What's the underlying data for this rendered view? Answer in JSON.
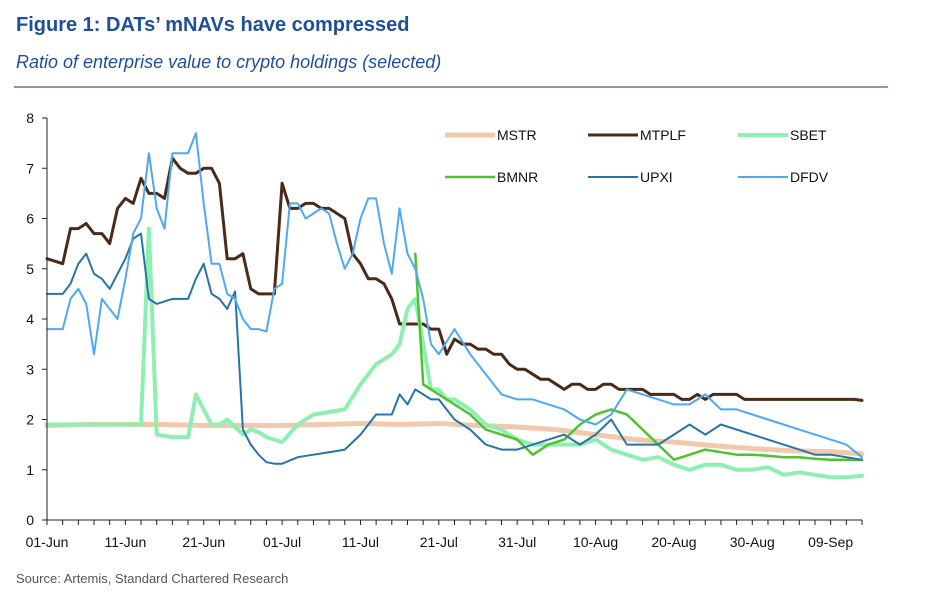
{
  "title": "Figure 1: DATs’ mNAVs have compressed",
  "subtitle": "Ratio of enterprise value to crypto holdings (selected)",
  "source": "Source: Artemis, Standard Chartered Research",
  "chart_data": {
    "type": "line",
    "title": "Figure 1: DATs’ mNAVs have compressed",
    "subtitle": "Ratio of enterprise value to crypto holdings (selected)",
    "xlabel": "",
    "ylabel": "",
    "ylim": [
      0,
      8
    ],
    "yticks": [
      0,
      1,
      2,
      3,
      4,
      5,
      6,
      7,
      8
    ],
    "xticks": [
      "01-Jun",
      "11-Jun",
      "21-Jun",
      "01-Jul",
      "11-Jul",
      "21-Jul",
      "31-Jul",
      "10-Aug",
      "20-Aug",
      "30-Aug",
      "09-Sep"
    ],
    "grid": false,
    "legend_position": "top-right",
    "x_unit": "days from 01-Jun",
    "series": [
      {
        "name": "MSTR",
        "color": "#f2c9ad",
        "x": [
          0,
          5,
          10,
          15,
          20,
          25,
          30,
          35,
          40,
          45,
          50,
          55,
          60,
          65,
          70,
          75,
          80,
          85,
          90,
          95,
          100,
          104
        ],
        "y": [
          1.88,
          1.9,
          1.9,
          1.9,
          1.88,
          1.88,
          1.88,
          1.9,
          1.92,
          1.9,
          1.92,
          1.88,
          1.85,
          1.8,
          1.7,
          1.6,
          1.55,
          1.48,
          1.42,
          1.38,
          1.36,
          1.32
        ]
      },
      {
        "name": "MTPLF",
        "color": "#4a2a1a",
        "x": [
          0,
          2,
          3,
          4,
          5,
          6,
          7,
          8,
          9,
          10,
          11,
          12,
          13,
          14,
          15,
          16,
          17,
          18,
          19,
          20,
          21,
          22,
          23,
          24,
          25,
          26,
          27,
          28,
          29,
          30,
          31,
          32,
          33,
          34,
          35,
          36,
          37,
          38,
          39,
          40,
          41,
          42,
          43,
          44,
          45,
          46,
          47,
          48,
          49,
          50,
          51,
          52,
          53,
          54,
          55,
          56,
          57,
          58,
          59,
          60,
          61,
          62,
          63,
          64,
          65,
          66,
          67,
          68,
          69,
          70,
          71,
          72,
          73,
          74,
          75,
          76,
          77,
          78,
          79,
          80,
          81,
          82,
          83,
          84,
          85,
          86,
          87,
          88,
          89,
          90,
          91,
          92,
          93,
          94,
          95,
          96,
          97,
          98,
          99,
          100,
          101,
          102,
          103,
          104
        ],
        "y": [
          5.2,
          5.1,
          5.8,
          5.8,
          5.9,
          5.7,
          5.7,
          5.5,
          6.2,
          6.4,
          6.3,
          6.8,
          6.5,
          6.5,
          6.4,
          7.2,
          7.0,
          6.9,
          6.9,
          7.0,
          7.0,
          6.7,
          5.2,
          5.2,
          5.3,
          4.6,
          4.5,
          4.5,
          4.5,
          6.7,
          6.2,
          6.2,
          6.3,
          6.3,
          6.2,
          6.2,
          6.1,
          6.0,
          5.3,
          5.1,
          4.8,
          4.8,
          4.7,
          4.4,
          3.9,
          3.9,
          3.9,
          3.9,
          3.8,
          3.8,
          3.3,
          3.6,
          3.5,
          3.5,
          3.4,
          3.4,
          3.3,
          3.3,
          3.1,
          3.0,
          3.0,
          2.9,
          2.8,
          2.8,
          2.7,
          2.6,
          2.7,
          2.7,
          2.6,
          2.6,
          2.7,
          2.7,
          2.6,
          2.6,
          2.6,
          2.6,
          2.5,
          2.5,
          2.5,
          2.5,
          2.4,
          2.4,
          2.5,
          2.4,
          2.5,
          2.5,
          2.5,
          2.5,
          2.4,
          2.4,
          2.4,
          2.4,
          2.4,
          2.4,
          2.4,
          2.4,
          2.4,
          2.4,
          2.4,
          2.4,
          2.4,
          2.4,
          2.4,
          2.38
        ]
      },
      {
        "name": "SBET",
        "color": "#8ef0b0",
        "x": [
          0,
          12,
          13,
          14,
          16,
          17,
          18,
          19,
          21,
          22,
          23,
          24,
          25,
          26,
          27,
          28,
          29,
          30,
          32,
          34,
          36,
          38,
          40,
          42,
          44,
          45,
          46,
          47,
          48,
          49,
          50,
          51,
          52,
          54,
          56,
          58,
          60,
          62,
          64,
          66,
          68,
          70,
          72,
          74,
          76,
          78,
          80,
          82,
          84,
          86,
          88,
          90,
          92,
          94,
          96,
          98,
          100,
          102,
          104
        ],
        "y": [
          1.9,
          1.9,
          5.8,
          1.7,
          1.65,
          1.65,
          1.65,
          2.5,
          1.9,
          1.9,
          2.0,
          1.85,
          1.7,
          1.8,
          1.75,
          1.65,
          1.6,
          1.55,
          1.9,
          2.1,
          2.15,
          2.2,
          2.7,
          3.1,
          3.3,
          3.5,
          4.2,
          4.4,
          3.5,
          2.6,
          2.6,
          2.4,
          2.4,
          2.2,
          1.9,
          1.8,
          1.6,
          1.5,
          1.5,
          1.5,
          1.5,
          1.6,
          1.4,
          1.3,
          1.2,
          1.25,
          1.1,
          1.0,
          1.1,
          1.1,
          1.0,
          1.0,
          1.05,
          0.9,
          0.95,
          0.9,
          0.85,
          0.85,
          0.88
        ]
      },
      {
        "name": "BMNR",
        "color": "#4fc22f",
        "x": [
          47,
          48,
          49,
          50,
          52,
          54,
          56,
          58,
          60,
          62,
          64,
          66,
          68,
          70,
          72,
          74,
          76,
          78,
          80,
          82,
          84,
          86,
          88,
          90,
          92,
          94,
          96,
          98,
          100,
          102,
          104
        ],
        "y": [
          5.3,
          2.7,
          2.6,
          2.5,
          2.3,
          2.1,
          1.8,
          1.7,
          1.6,
          1.3,
          1.5,
          1.6,
          1.9,
          2.1,
          2.2,
          2.1,
          1.8,
          1.5,
          1.2,
          1.3,
          1.4,
          1.35,
          1.3,
          1.3,
          1.28,
          1.25,
          1.25,
          1.22,
          1.2,
          1.2,
          1.2
        ]
      },
      {
        "name": "UPXI",
        "color": "#2874a8",
        "x": [
          0,
          2,
          3,
          4,
          5,
          6,
          7,
          8,
          10,
          11,
          12,
          13,
          14,
          15,
          16,
          17,
          18,
          19,
          20,
          21,
          22,
          23,
          24,
          25,
          26,
          27,
          28,
          29,
          30,
          32,
          34,
          36,
          38,
          40,
          42,
          44,
          45,
          46,
          47,
          48,
          49,
          50,
          52,
          54,
          56,
          58,
          60,
          62,
          64,
          66,
          68,
          70,
          72,
          74,
          76,
          78,
          80,
          82,
          84,
          86,
          88,
          90,
          92,
          94,
          96,
          98,
          100,
          102,
          104
        ],
        "y": [
          4.5,
          4.5,
          4.7,
          5.1,
          5.3,
          4.9,
          4.8,
          4.6,
          5.2,
          5.6,
          5.7,
          4.4,
          4.3,
          4.35,
          4.4,
          4.4,
          4.4,
          4.8,
          5.1,
          4.5,
          4.4,
          4.2,
          4.55,
          1.8,
          1.5,
          1.3,
          1.15,
          1.12,
          1.12,
          1.25,
          1.3,
          1.35,
          1.4,
          1.7,
          2.1,
          2.1,
          2.5,
          2.3,
          2.6,
          2.5,
          2.4,
          2.4,
          2.0,
          1.8,
          1.5,
          1.4,
          1.4,
          1.5,
          1.6,
          1.7,
          1.5,
          1.7,
          2.0,
          1.5,
          1.5,
          1.5,
          1.7,
          1.9,
          1.7,
          1.9,
          1.8,
          1.7,
          1.6,
          1.5,
          1.4,
          1.3,
          1.3,
          1.25,
          1.2
        ]
      },
      {
        "name": "DFDV",
        "color": "#50a8f0",
        "x": [
          0,
          2,
          3,
          4,
          5,
          6,
          7,
          8,
          9,
          10,
          11,
          12,
          13,
          14,
          15,
          16,
          17,
          18,
          19,
          20,
          21,
          22,
          23,
          24,
          25,
          26,
          27,
          28,
          29,
          30,
          31,
          32,
          33,
          34,
          35,
          36,
          37,
          38,
          39,
          40,
          41,
          42,
          43,
          44,
          45,
          46,
          47,
          48,
          49,
          50,
          52,
          54,
          56,
          58,
          60,
          62,
          64,
          66,
          68,
          70,
          72,
          74,
          76,
          78,
          80,
          82,
          84,
          86,
          88,
          90,
          92,
          94,
          96,
          98,
          100,
          102,
          104
        ],
        "y": [
          3.8,
          3.8,
          4.4,
          4.6,
          4.3,
          3.3,
          4.4,
          4.2,
          4.0,
          4.8,
          5.7,
          6.0,
          7.3,
          6.2,
          5.8,
          7.3,
          7.3,
          7.3,
          7.7,
          6.3,
          5.1,
          5.1,
          4.5,
          4.4,
          4.0,
          3.8,
          3.8,
          3.75,
          4.6,
          4.7,
          6.3,
          6.3,
          6.0,
          6.1,
          6.2,
          6.1,
          5.5,
          5.0,
          5.3,
          6.0,
          6.4,
          6.4,
          5.5,
          4.9,
          6.2,
          5.3,
          5.0,
          4.4,
          3.5,
          3.3,
          3.8,
          3.3,
          2.9,
          2.5,
          2.4,
          2.4,
          2.3,
          2.2,
          2.0,
          1.9,
          2.1,
          2.6,
          2.5,
          2.4,
          2.3,
          2.3,
          2.5,
          2.2,
          2.2,
          2.1,
          2.0,
          1.9,
          1.8,
          1.7,
          1.6,
          1.5,
          1.25
        ]
      }
    ]
  }
}
